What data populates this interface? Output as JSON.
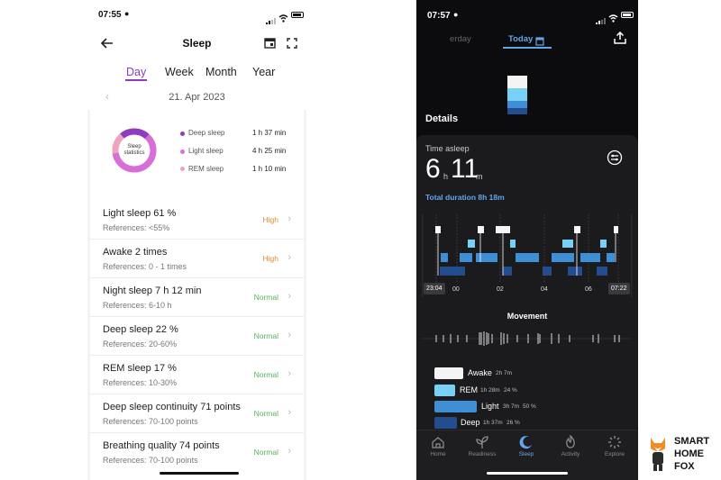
{
  "left": {
    "status_time": "07:55",
    "title": "Sleep",
    "tabs": [
      "Day",
      "Week",
      "Month",
      "Year"
    ],
    "active_tab": "Day",
    "date": "21. Apr 2023",
    "ring_label_1": "Sleep",
    "ring_label_2": "statistics",
    "legend": [
      {
        "label": "Deep sleep",
        "value": "1 h 37 min",
        "color": "#8e3bbf"
      },
      {
        "label": "Light sleep",
        "value": "4 h 25 min",
        "color": "#d66fd8"
      },
      {
        "label": "REM sleep",
        "value": "1 h 10 min",
        "color": "#f0a3bf"
      }
    ],
    "rows": [
      {
        "title": "Light sleep 61 %",
        "ref": "References: <55%",
        "status": "High"
      },
      {
        "title": "Awake 2 times",
        "ref": "References: 0 - 1 times",
        "status": "High"
      },
      {
        "title": "Night sleep 7 h 12 min",
        "ref": "References: 6-10 h",
        "status": "Normal"
      },
      {
        "title": "Deep sleep 22 %",
        "ref": "References: 20-60%",
        "status": "Normal"
      },
      {
        "title": "REM sleep 17 %",
        "ref": "References: 10-30%",
        "status": "Normal"
      },
      {
        "title": "Deep sleep continuity 71 points",
        "ref": "References: 70-100 points",
        "status": "Normal"
      },
      {
        "title": "Breathing quality 74 points",
        "ref": "References: 70-100 points",
        "status": "Normal"
      }
    ]
  },
  "right": {
    "status_time": "07:57",
    "prev_tab": "erday",
    "today_tab": "Today",
    "details": "Details",
    "time_asleep_label": "Time asleep",
    "hours": "6",
    "h_unit": "h",
    "minutes": "11",
    "m_unit": "m",
    "total_duration": "Total duration 8h 18m",
    "start_time": "23:04",
    "end_time": "07:22",
    "ticks": [
      "00",
      "02",
      "04",
      "06"
    ],
    "movement": "Movement",
    "stages": [
      {
        "name": "Awake",
        "dur": "2h 7m",
        "pct": "",
        "color": "#f4f4f4"
      },
      {
        "name": "REM",
        "dur": "1h 28m",
        "pct": "24 %",
        "color": "#79d0f5"
      },
      {
        "name": "Light",
        "dur": "3h 7m",
        "pct": "50 %",
        "color": "#3f8fd6"
      },
      {
        "name": "Deep",
        "dur": "1h 37m",
        "pct": "26 %",
        "color": "#234d8f"
      }
    ],
    "nav": [
      "Home",
      "Readiness",
      "Sleep",
      "Activity",
      "Explore"
    ],
    "active_nav": "Sleep"
  },
  "watermark": [
    "SMART",
    "HOME",
    "FOX"
  ]
}
